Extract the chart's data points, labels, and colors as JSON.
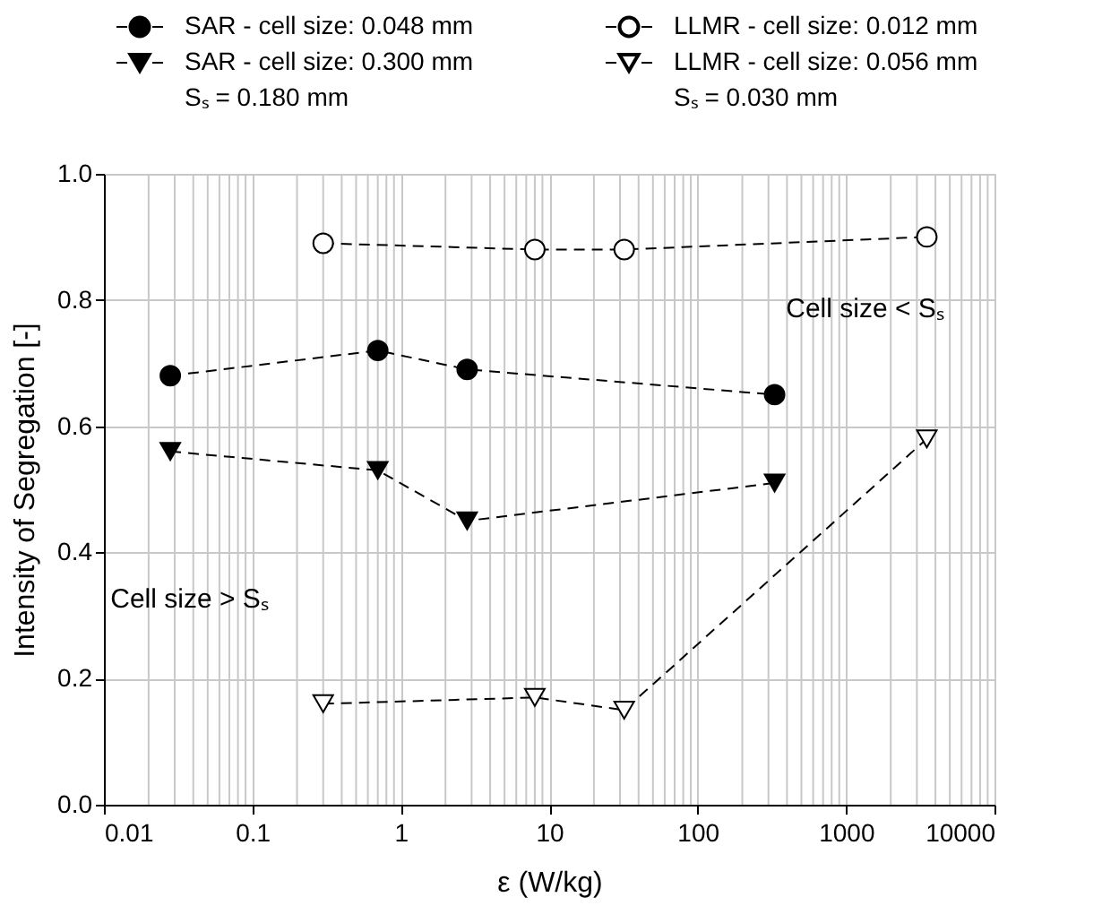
{
  "chart_data": {
    "type": "line",
    "xlabel": "ε (W/kg)",
    "ylabel": "Intensity of Segregation [-]",
    "log": "x",
    "xlim": [
      0.01,
      10000
    ],
    "xticks": [
      0.01,
      0.1,
      1,
      10,
      100,
      1000,
      10000
    ],
    "ylim": [
      0,
      1
    ],
    "yticks": [
      {
        "value": 0,
        "label": "0.0"
      },
      {
        "value": 0.2,
        "label": "0.2"
      },
      {
        "value": 0.4,
        "label": "0.4"
      },
      {
        "value": 0.6,
        "label": "0.6"
      },
      {
        "value": 0.8,
        "label": "0.8"
      },
      {
        "value": 1,
        "label": "1.0"
      }
    ],
    "grid": true,
    "legend": "top",
    "line_style": "dashed",
    "series": [
      {
        "name": "SAR - cell size: 0.048 mm",
        "color": "#000000",
        "marker": "circle",
        "x": [
          0.028,
          0.7,
          2.8,
          330
        ],
        "values": [
          0.68,
          0.72,
          0.69,
          0.65
        ]
      },
      {
        "name": "SAR - cell size: 0.300 mm",
        "color": "#000000",
        "marker": "triangle",
        "x": [
          0.028,
          0.7,
          2.8,
          330
        ],
        "values": [
          0.56,
          0.53,
          0.45,
          0.51
        ]
      },
      {
        "name": "LLMR - cell size: 0.012 mm",
        "color": "#ffffff",
        "marker": "circle",
        "x": [
          0.3,
          8,
          32,
          3500
        ],
        "values": [
          0.89,
          0.88,
          0.88,
          0.9
        ]
      },
      {
        "name": "LLMR - cell size: 0.056 mm",
        "color": "#ffffff",
        "marker": "triangle",
        "x": [
          0.3,
          8,
          32,
          3500
        ],
        "values": [
          0.16,
          0.17,
          0.15,
          0.58
        ]
      }
    ],
    "annotations": [
      "Sₛ = 0.180 mm",
      "Sₛ = 0.030 mm",
      "Cell size < Sₛ",
      "Cell size > Sₛ"
    ]
  }
}
